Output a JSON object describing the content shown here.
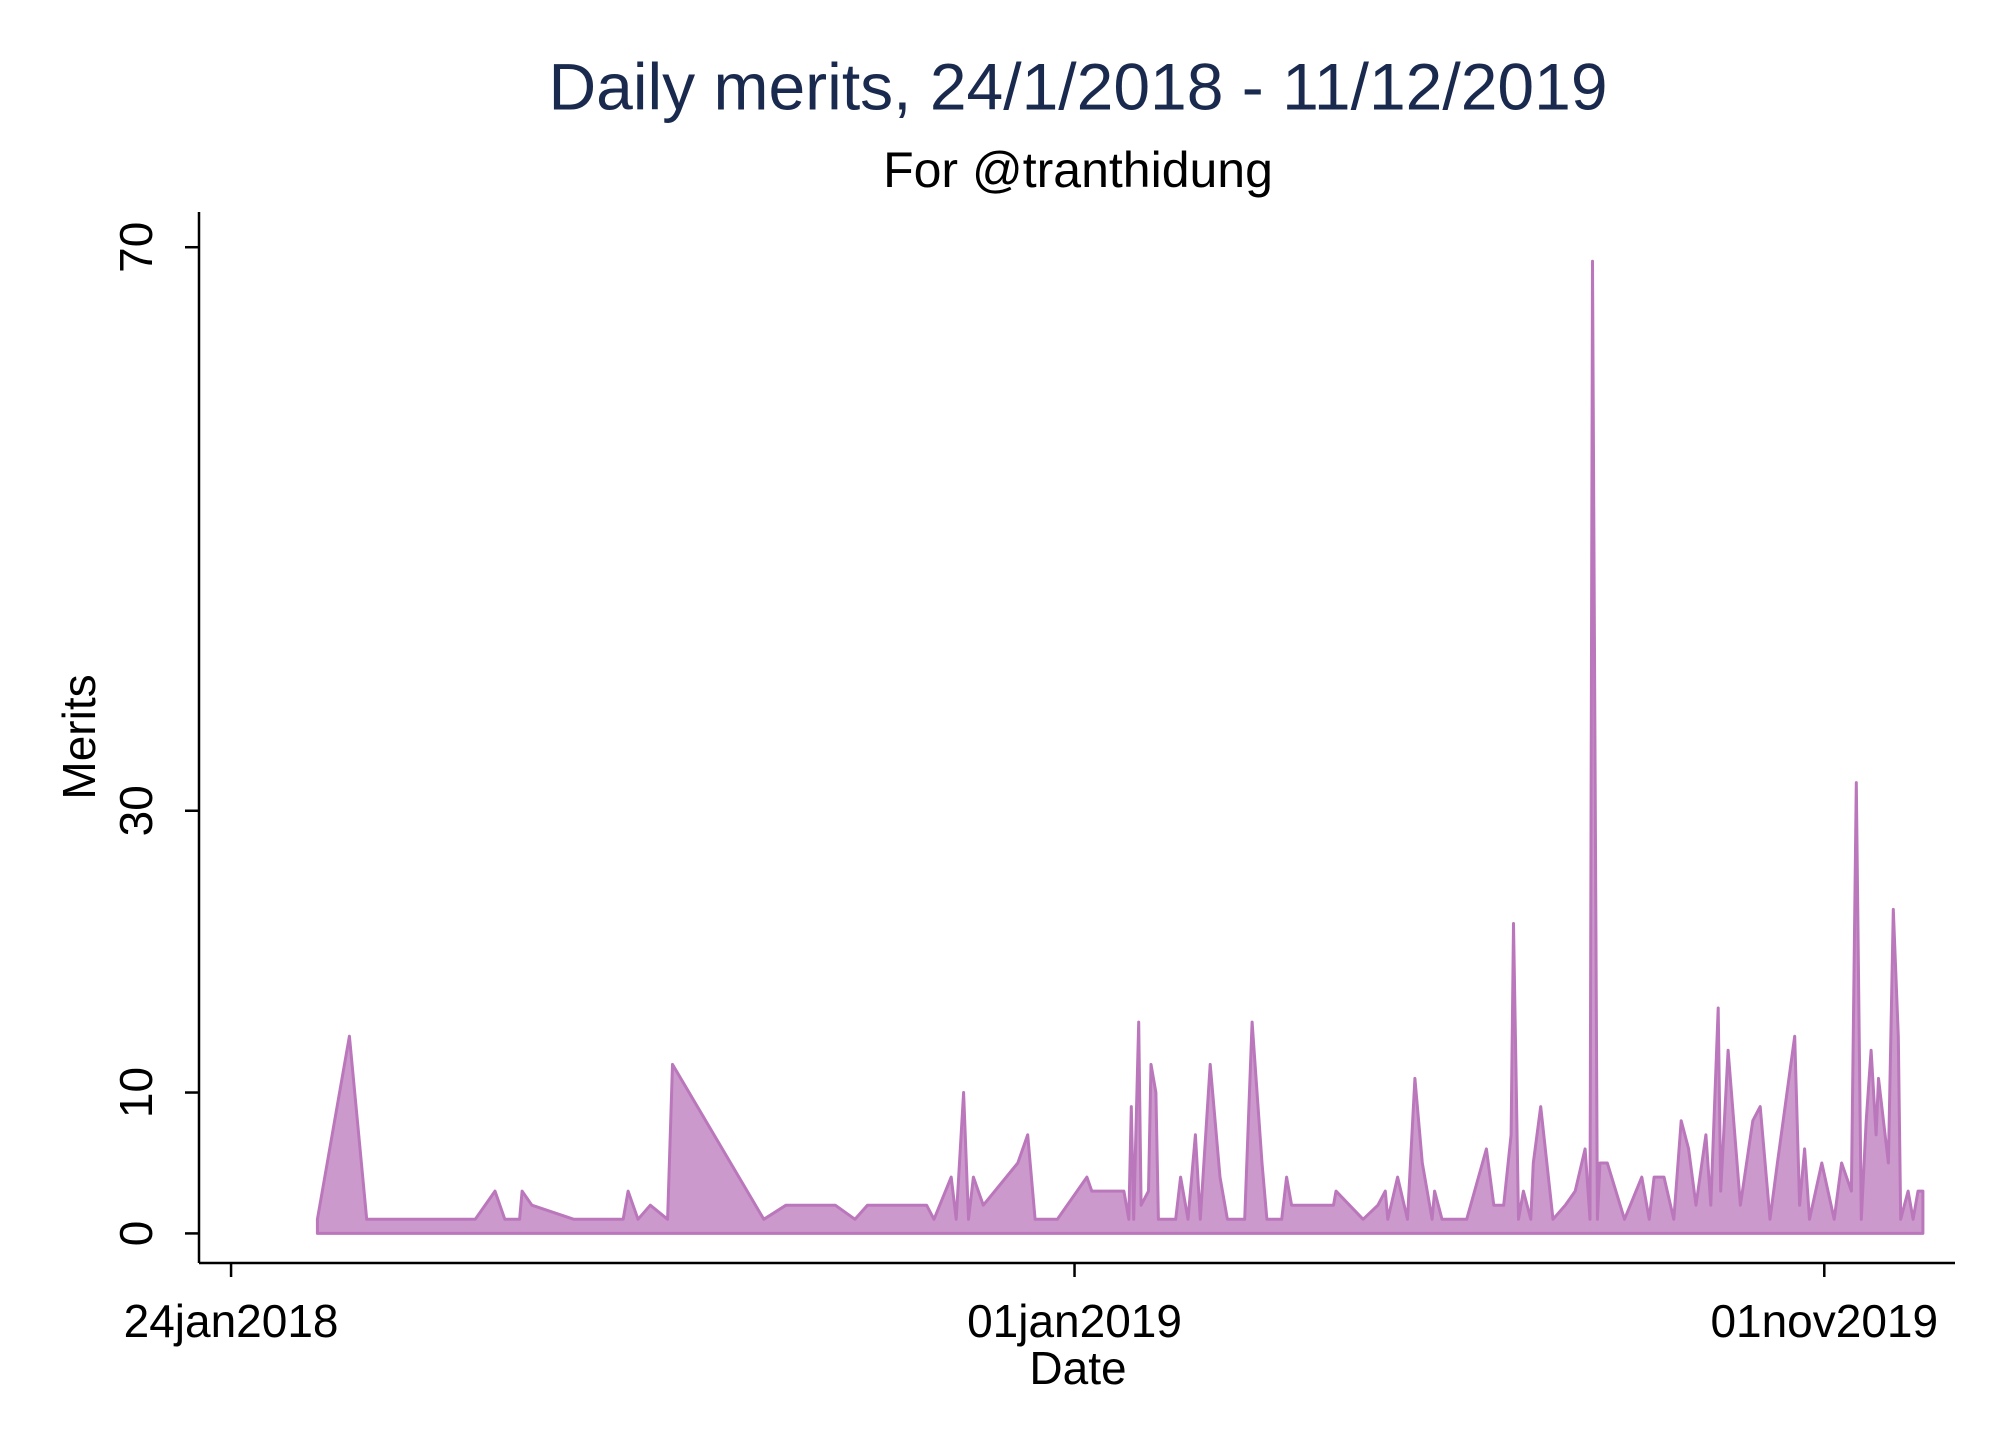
{
  "chart_data": {
    "type": "area",
    "title": "Daily merits, 24/1/2018 - 11/12/2019",
    "subtitle": "For @tranthidung",
    "x_label": "Date",
    "y_label": "Merits",
    "fill_color": "#cc99cc",
    "line_color": "#bb77bb",
    "xlim": [
      "2018-01-11",
      "2019-12-24"
    ],
    "xticks": [
      {
        "value": "2018-01-24",
        "label": "24jan2018"
      },
      {
        "value": "2019-01-01",
        "label": "01jan2019"
      },
      {
        "value": "2019-11-01",
        "label": "01nov2019"
      }
    ],
    "ylim": [
      -2.1,
      72.5
    ],
    "yticks": [
      0,
      10,
      30,
      70
    ],
    "grid": false,
    "series": [
      {
        "name": "Merits",
        "x": [
          "2018-02-28",
          "2018-03-13",
          "2018-03-20",
          "2018-05-03",
          "2018-05-11",
          "2018-05-15",
          "2018-05-21",
          "2018-05-22",
          "2018-05-26",
          "2018-06-12",
          "2018-07-02",
          "2018-07-04",
          "2018-07-08",
          "2018-07-13",
          "2018-07-20",
          "2018-07-22",
          "2018-08-28",
          "2018-09-06",
          "2018-09-26",
          "2018-10-04",
          "2018-10-09",
          "2018-11-02",
          "2018-11-05",
          "2018-11-12",
          "2018-11-14",
          "2018-11-17",
          "2018-11-19",
          "2018-11-21",
          "2018-11-25",
          "2018-12-09",
          "2018-12-13",
          "2018-12-16",
          "2018-12-25",
          "2019-01-06",
          "2019-01-08",
          "2019-01-21",
          "2019-01-23",
          "2019-01-24",
          "2019-01-25",
          "2019-01-27",
          "2019-01-28",
          "2019-01-31",
          "2019-02-01",
          "2019-02-03",
          "2019-02-04",
          "2019-02-11",
          "2019-02-13",
          "2019-02-16",
          "2019-02-19",
          "2019-02-21",
          "2019-02-25",
          "2019-03-01",
          "2019-03-04",
          "2019-03-11",
          "2019-03-14",
          "2019-03-18",
          "2019-03-20",
          "2019-03-26",
          "2019-03-28",
          "2019-03-30",
          "2019-04-16",
          "2019-04-17",
          "2019-04-28",
          "2019-05-04",
          "2019-05-07",
          "2019-05-08",
          "2019-05-12",
          "2019-05-16",
          "2019-05-19",
          "2019-05-22",
          "2019-05-26",
          "2019-05-27",
          "2019-05-30",
          "2019-06-09",
          "2019-06-17",
          "2019-06-20",
          "2019-06-24",
          "2019-06-27",
          "2019-06-28",
          "2019-06-30",
          "2019-07-02",
          "2019-07-05",
          "2019-07-06",
          "2019-07-09",
          "2019-07-14",
          "2019-07-19",
          "2019-07-23",
          "2019-07-27",
          "2019-07-29",
          "2019-07-30",
          "2019-08-01",
          "2019-08-02",
          "2019-08-05",
          "2019-08-12",
          "2019-08-19",
          "2019-08-22",
          "2019-08-24",
          "2019-08-28",
          "2019-09-01",
          "2019-09-04",
          "2019-09-07",
          "2019-09-10",
          "2019-09-14",
          "2019-09-16",
          "2019-09-19",
          "2019-09-20",
          "2019-09-23",
          "2019-09-28",
          "2019-10-03",
          "2019-10-06",
          "2019-10-10",
          "2019-10-13",
          "2019-10-20",
          "2019-10-22",
          "2019-10-24",
          "2019-10-26",
          "2019-10-31",
          "2019-11-05",
          "2019-11-08",
          "2019-11-12",
          "2019-11-14",
          "2019-11-16",
          "2019-11-18",
          "2019-11-20",
          "2019-11-22",
          "2019-11-23",
          "2019-11-27",
          "2019-11-29",
          "2019-12-01",
          "2019-12-02",
          "2019-12-05",
          "2019-12-07",
          "2019-12-09",
          "2019-12-11"
        ],
        "values": [
          1,
          14,
          1,
          1,
          3,
          1,
          1,
          3,
          2,
          1,
          1,
          3,
          1,
          2,
          1,
          12,
          1,
          2,
          2,
          1,
          2,
          2,
          1,
          4,
          1,
          10,
          1,
          4,
          2,
          5,
          7,
          1,
          1,
          4,
          3,
          3,
          1,
          9,
          1,
          15,
          2,
          3,
          12,
          10,
          1,
          1,
          4,
          1,
          7,
          1,
          12,
          4,
          1,
          1,
          15,
          5,
          1,
          1,
          4,
          2,
          2,
          3,
          1,
          2,
          3,
          1,
          4,
          1,
          11,
          5,
          1,
          3,
          1,
          1,
          6,
          2,
          2,
          7,
          22,
          1,
          3,
          1,
          5,
          9,
          1,
          2,
          3,
          6,
          1,
          69,
          1,
          5,
          5,
          1,
          4,
          1,
          4,
          4,
          1,
          8,
          6,
          2,
          7,
          2,
          16,
          3,
          13,
          2,
          8,
          9,
          1,
          5,
          14,
          2,
          6,
          1,
          5,
          1,
          5,
          3,
          32,
          1,
          8,
          13,
          7,
          11,
          5,
          23,
          14,
          1,
          3,
          1,
          3,
          3
        ]
      }
    ]
  }
}
